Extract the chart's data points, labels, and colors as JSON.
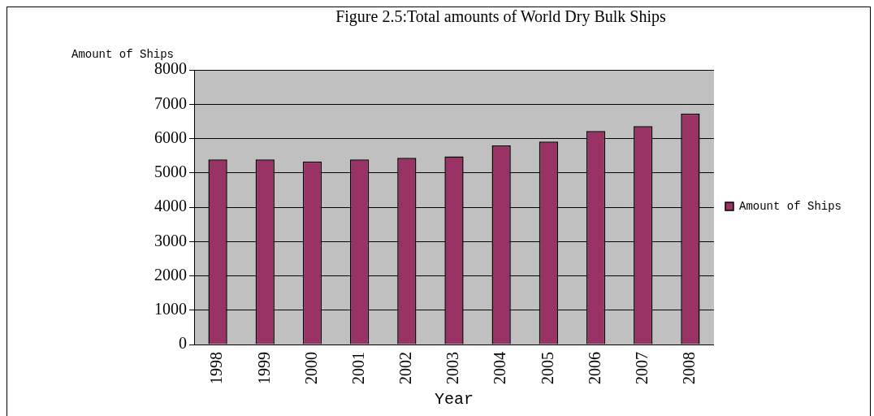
{
  "chart_data": {
    "type": "bar",
    "title": "Figure 2.5:Total amounts of World Dry Bulk Ships",
    "xlabel": "Year",
    "ylabel": "Amount of Ships",
    "categories": [
      "1998",
      "1999",
      "2000",
      "2001",
      "2002",
      "2003",
      "2004",
      "2005",
      "2006",
      "2007",
      "2008"
    ],
    "series": [
      {
        "name": "Amount of Ships",
        "color": "#993366",
        "values": [
          5390,
          5390,
          5330,
          5390,
          5440,
          5480,
          5800,
          5910,
          6220,
          6360,
          6730
        ]
      }
    ],
    "ylim": [
      0,
      8000
    ],
    "yticks": [
      0,
      1000,
      2000,
      3000,
      4000,
      5000,
      6000,
      7000,
      8000
    ],
    "grid": "y",
    "legend": "right"
  }
}
